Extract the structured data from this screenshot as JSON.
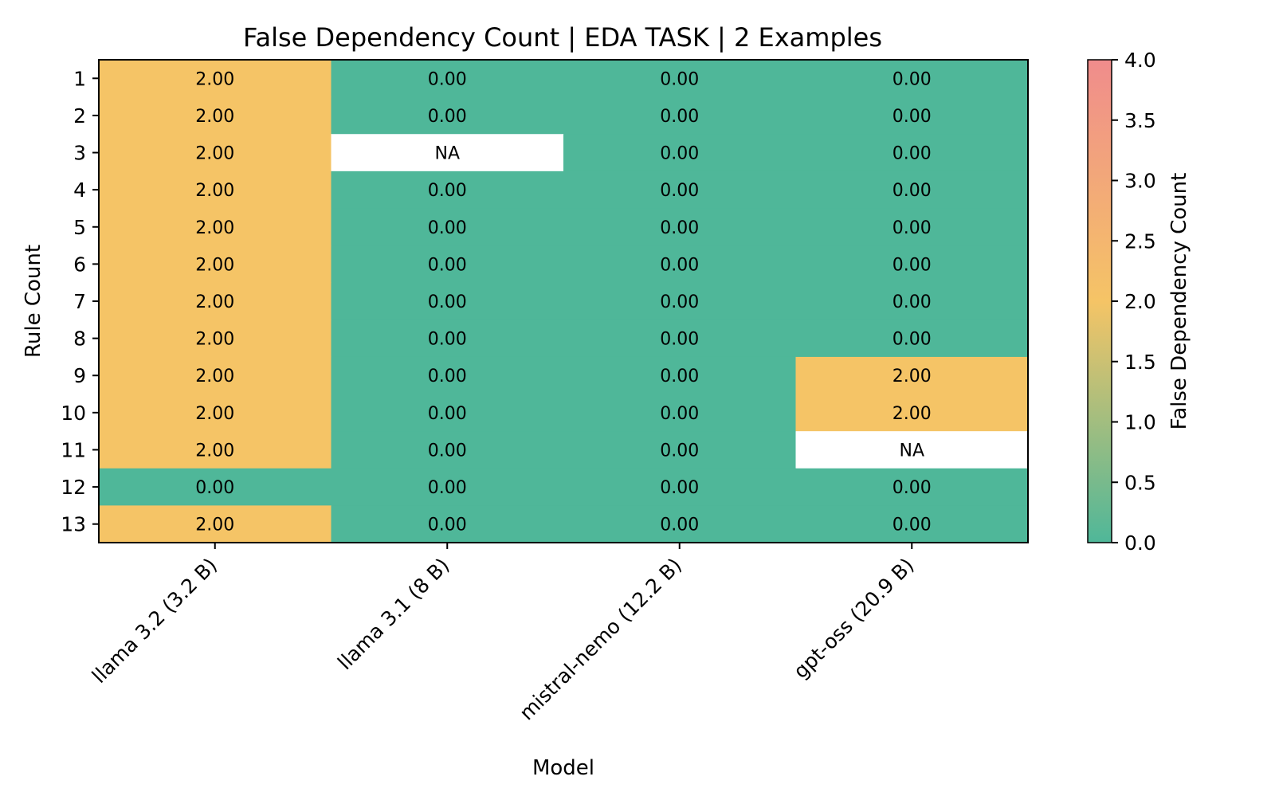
{
  "chart_data": {
    "type": "heatmap",
    "title": "False Dependency Count | EDA TASK | 2 Examples",
    "xlabel": "Model",
    "ylabel": "Rule Count",
    "colorbar_label": "False Dependency Count",
    "columns": [
      "llama 3.2 (3.2 B)",
      "llama 3.1 (8 B)",
      "mistral-nemo (12.2 B)",
      "gpt-oss (20.9 B)"
    ],
    "rows": [
      "1",
      "2",
      "3",
      "4",
      "5",
      "6",
      "7",
      "8",
      "9",
      "10",
      "11",
      "12",
      "13"
    ],
    "values": [
      [
        2,
        0,
        0,
        0
      ],
      [
        2,
        0,
        0,
        0
      ],
      [
        2,
        null,
        0,
        0
      ],
      [
        2,
        0,
        0,
        0
      ],
      [
        2,
        0,
        0,
        0
      ],
      [
        2,
        0,
        0,
        0
      ],
      [
        2,
        0,
        0,
        0
      ],
      [
        2,
        0,
        0,
        0
      ],
      [
        2,
        0,
        0,
        2
      ],
      [
        2,
        0,
        0,
        2
      ],
      [
        2,
        0,
        0,
        null
      ],
      [
        0,
        0,
        0,
        0
      ],
      [
        2,
        0,
        0,
        0
      ]
    ],
    "missing_label": "NA",
    "value_format_decimals": 2,
    "vmin": 0,
    "vmax": 4,
    "colorbar_ticks": [
      0.0,
      0.5,
      1.0,
      1.5,
      2.0,
      2.5,
      3.0,
      3.5,
      4.0
    ],
    "colormap": [
      "#4fb799",
      "#f5c466",
      "#f08c8c"
    ],
    "missing_color": "#ffffff"
  }
}
